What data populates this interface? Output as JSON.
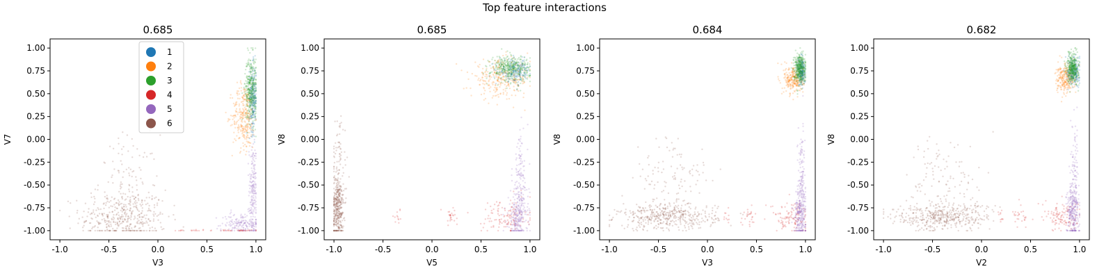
{
  "suptitle": "Top feature interactions",
  "colors": {
    "1": "#1f77b4",
    "2": "#ff7f0e",
    "3": "#2ca02c",
    "4": "#d62728",
    "5": "#9467bd",
    "6": "#8c564b"
  },
  "legend": {
    "placement": "upper-center of first subplot",
    "entries": [
      {
        "label": "1",
        "color": "#1f77b4"
      },
      {
        "label": "2",
        "color": "#ff7f0e"
      },
      {
        "label": "3",
        "color": "#2ca02c"
      },
      {
        "label": "4",
        "color": "#d62728"
      },
      {
        "label": "5",
        "color": "#9467bd"
      },
      {
        "label": "6",
        "color": "#8c564b"
      }
    ]
  },
  "chart_data": [
    {
      "type": "scatter",
      "title": "0.685",
      "xlabel": "V3",
      "ylabel": "V7",
      "xlim": [
        -1.1,
        1.1
      ],
      "ylim": [
        -1.1,
        1.1
      ],
      "xticks": [
        "-1.0",
        "-0.5",
        "0.0",
        "0.5",
        "1.0"
      ],
      "xtick_values": [
        -1.0,
        -0.5,
        0.0,
        0.5,
        1.0
      ],
      "yticks": [
        "1.00",
        "0.75",
        "0.50",
        "0.25",
        "0.00",
        "-0.25",
        "-0.50",
        "-0.75",
        "-1.00"
      ],
      "ytick_values": [
        1.0,
        0.75,
        0.5,
        0.25,
        0.0,
        -0.25,
        -0.5,
        -0.75,
        -1.0
      ],
      "grid": false,
      "show_legend": true,
      "series": [
        {
          "name": "1",
          "clusters": [
            {
              "cx": 0.97,
              "cy": 0.45,
              "sx": 0.02,
              "sy": 0.18,
              "n": 220
            }
          ]
        },
        {
          "name": "2",
          "clusters": [
            {
              "cx": 0.88,
              "cy": 0.25,
              "sx": 0.06,
              "sy": 0.18,
              "n": 300
            }
          ]
        },
        {
          "name": "3",
          "clusters": [
            {
              "cx": 0.95,
              "cy": 0.55,
              "sx": 0.03,
              "sy": 0.18,
              "n": 380
            }
          ]
        },
        {
          "name": "4",
          "clusters": [
            {
              "cx": 0.85,
              "cy": -1.0,
              "sx": 0.1,
              "sy": 0.005,
              "n": 40
            },
            {
              "cx": 0.42,
              "cy": -1.0,
              "sx": 0.06,
              "sy": 0.005,
              "n": 12
            },
            {
              "cx": 0.22,
              "cy": -1.0,
              "sx": 0.02,
              "sy": 0.005,
              "n": 6
            }
          ]
        },
        {
          "name": "5",
          "clusters": [
            {
              "cx": 0.97,
              "cy": -0.55,
              "sx": 0.02,
              "sy": 0.25,
              "n": 180
            },
            {
              "cx": 0.85,
              "cy": -0.92,
              "sx": 0.1,
              "sy": 0.06,
              "n": 160
            }
          ]
        },
        {
          "name": "6",
          "clusters": [
            {
              "cx": -0.35,
              "cy": -0.85,
              "sx": 0.22,
              "sy": 0.15,
              "n": 420
            },
            {
              "cx": -0.3,
              "cy": -0.45,
              "sx": 0.15,
              "sy": 0.25,
              "n": 90
            }
          ]
        }
      ]
    },
    {
      "type": "scatter",
      "title": "0.685",
      "xlabel": "V5",
      "ylabel": "V8",
      "xlim": [
        -1.1,
        1.1
      ],
      "ylim": [
        -1.1,
        1.1
      ],
      "xticks": [
        "-1.0",
        "-0.5",
        "0.0",
        "0.5",
        "1.0"
      ],
      "xtick_values": [
        -1.0,
        -0.5,
        0.0,
        0.5,
        1.0
      ],
      "yticks": [
        "1.00",
        "0.75",
        "0.50",
        "0.25",
        "0.00",
        "-0.25",
        "-0.50",
        "-0.75",
        "-1.00"
      ],
      "ytick_values": [
        1.0,
        0.75,
        0.5,
        0.25,
        0.0,
        -0.25,
        -0.5,
        -0.75,
        -1.0
      ],
      "grid": false,
      "show_legend": false,
      "series": [
        {
          "name": "1",
          "clusters": [
            {
              "cx": 0.85,
              "cy": 0.75,
              "sx": 0.08,
              "sy": 0.06,
              "n": 200
            }
          ]
        },
        {
          "name": "2",
          "clusters": [
            {
              "cx": 0.7,
              "cy": 0.66,
              "sx": 0.15,
              "sy": 0.1,
              "n": 280
            }
          ]
        },
        {
          "name": "3",
          "clusters": [
            {
              "cx": 0.8,
              "cy": 0.78,
              "sx": 0.1,
              "sy": 0.07,
              "n": 380
            }
          ]
        },
        {
          "name": "4",
          "clusters": [
            {
              "cx": 0.75,
              "cy": -0.85,
              "sx": 0.12,
              "sy": 0.1,
              "n": 120
            },
            {
              "cx": 0.2,
              "cy": -0.85,
              "sx": 0.05,
              "sy": 0.05,
              "n": 25
            },
            {
              "cx": -0.35,
              "cy": -0.85,
              "sx": 0.04,
              "sy": 0.05,
              "n": 12
            }
          ]
        },
        {
          "name": "5",
          "clusters": [
            {
              "cx": 0.88,
              "cy": -0.85,
              "sx": 0.05,
              "sy": 0.12,
              "n": 220
            },
            {
              "cx": 0.9,
              "cy": -0.4,
              "sx": 0.04,
              "sy": 0.25,
              "n": 120
            }
          ]
        },
        {
          "name": "6",
          "clusters": [
            {
              "cx": -0.96,
              "cy": -0.75,
              "sx": 0.03,
              "sy": 0.18,
              "n": 380
            },
            {
              "cx": -0.95,
              "cy": -0.2,
              "sx": 0.04,
              "sy": 0.25,
              "n": 70
            }
          ]
        }
      ]
    },
    {
      "type": "scatter",
      "title": "0.684",
      "xlabel": "V3",
      "ylabel": "V8",
      "xlim": [
        -1.1,
        1.1
      ],
      "ylim": [
        -1.1,
        1.1
      ],
      "xticks": [
        "-1.0",
        "-0.5",
        "0.0",
        "0.5",
        "1.0"
      ],
      "xtick_values": [
        -1.0,
        -0.5,
        0.0,
        0.5,
        1.0
      ],
      "yticks": [
        "1.00",
        "0.75",
        "0.50",
        "0.25",
        "0.00",
        "-0.25",
        "-0.50",
        "-0.75",
        "-1.00"
      ],
      "ytick_values": [
        1.0,
        0.75,
        0.5,
        0.25,
        0.0,
        -0.25,
        -0.5,
        -0.75,
        -1.0
      ],
      "grid": false,
      "show_legend": false,
      "series": [
        {
          "name": "1",
          "clusters": [
            {
              "cx": 0.96,
              "cy": 0.75,
              "sx": 0.02,
              "sy": 0.08,
              "n": 200
            }
          ]
        },
        {
          "name": "2",
          "clusters": [
            {
              "cx": 0.88,
              "cy": 0.66,
              "sx": 0.05,
              "sy": 0.08,
              "n": 260
            }
          ]
        },
        {
          "name": "3",
          "clusters": [
            {
              "cx": 0.94,
              "cy": 0.78,
              "sx": 0.03,
              "sy": 0.08,
              "n": 380
            }
          ]
        },
        {
          "name": "4",
          "clusters": [
            {
              "cx": 0.85,
              "cy": -0.85,
              "sx": 0.1,
              "sy": 0.08,
              "n": 110
            },
            {
              "cx": 0.42,
              "cy": -0.85,
              "sx": 0.04,
              "sy": 0.05,
              "n": 25
            },
            {
              "cx": 0.2,
              "cy": -0.85,
              "sx": 0.02,
              "sy": 0.04,
              "n": 10
            }
          ]
        },
        {
          "name": "5",
          "clusters": [
            {
              "cx": 0.95,
              "cy": -0.8,
              "sx": 0.03,
              "sy": 0.15,
              "n": 260
            },
            {
              "cx": 0.96,
              "cy": -0.35,
              "sx": 0.02,
              "sy": 0.25,
              "n": 100
            }
          ]
        },
        {
          "name": "6",
          "clusters": [
            {
              "cx": -0.4,
              "cy": -0.85,
              "sx": 0.25,
              "sy": 0.07,
              "n": 420
            },
            {
              "cx": -0.35,
              "cy": -0.45,
              "sx": 0.2,
              "sy": 0.25,
              "n": 120
            }
          ]
        }
      ]
    },
    {
      "type": "scatter",
      "title": "0.682",
      "xlabel": "V2",
      "ylabel": "V8",
      "xlim": [
        -1.1,
        1.1
      ],
      "ylim": [
        -1.1,
        1.1
      ],
      "xticks": [
        "-1.0",
        "-0.5",
        "0.0",
        "0.5",
        "1.0"
      ],
      "xtick_values": [
        -1.0,
        -0.5,
        0.0,
        0.5,
        1.0
      ],
      "yticks": [
        "1.00",
        "0.75",
        "0.50",
        "0.25",
        "0.00",
        "-0.25",
        "-0.50",
        "-0.75",
        "-1.00"
      ],
      "ytick_values": [
        1.0,
        0.75,
        0.5,
        0.25,
        0.0,
        -0.25,
        -0.5,
        -0.75,
        -1.0
      ],
      "grid": false,
      "show_legend": false,
      "series": [
        {
          "name": "1",
          "clusters": [
            {
              "cx": 0.94,
              "cy": 0.75,
              "sx": 0.03,
              "sy": 0.08,
              "n": 200
            }
          ]
        },
        {
          "name": "2",
          "clusters": [
            {
              "cx": 0.86,
              "cy": 0.66,
              "sx": 0.05,
              "sy": 0.08,
              "n": 260
            }
          ]
        },
        {
          "name": "3",
          "clusters": [
            {
              "cx": 0.93,
              "cy": 0.78,
              "sx": 0.03,
              "sy": 0.08,
              "n": 380
            }
          ]
        },
        {
          "name": "4",
          "clusters": [
            {
              "cx": 0.82,
              "cy": -0.85,
              "sx": 0.1,
              "sy": 0.08,
              "n": 110
            },
            {
              "cx": 0.4,
              "cy": -0.85,
              "sx": 0.04,
              "sy": 0.05,
              "n": 25
            },
            {
              "cx": 0.2,
              "cy": -0.85,
              "sx": 0.02,
              "sy": 0.04,
              "n": 10
            }
          ]
        },
        {
          "name": "5",
          "clusters": [
            {
              "cx": 0.93,
              "cy": -0.8,
              "sx": 0.03,
              "sy": 0.15,
              "n": 260
            },
            {
              "cx": 0.95,
              "cy": -0.35,
              "sx": 0.02,
              "sy": 0.25,
              "n": 100
            }
          ]
        },
        {
          "name": "6",
          "clusters": [
            {
              "cx": -0.4,
              "cy": -0.85,
              "sx": 0.25,
              "sy": 0.07,
              "n": 420
            },
            {
              "cx": -0.35,
              "cy": -0.45,
              "sx": 0.2,
              "sy": 0.25,
              "n": 120
            }
          ]
        }
      ]
    }
  ]
}
